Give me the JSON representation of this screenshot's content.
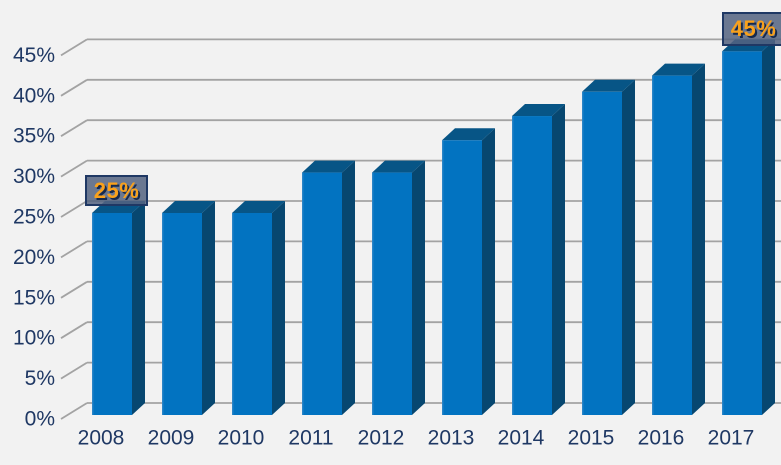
{
  "chart_data": {
    "type": "bar",
    "style": "3d-column",
    "title": "",
    "xlabel": "",
    "ylabel": "",
    "categories": [
      "2008",
      "2009",
      "2010",
      "2011",
      "2012",
      "2013",
      "2014",
      "2015",
      "2016",
      "2017"
    ],
    "values": [
      25,
      25,
      25,
      30,
      30,
      34,
      37,
      40,
      42,
      45
    ],
    "unit": "%",
    "ylim": [
      0,
      45
    ],
    "y_tick_step": 5,
    "y_tick_labels": [
      "0%",
      "5%",
      "10%",
      "15%",
      "20%",
      "25%",
      "30%",
      "35%",
      "40%",
      "45%"
    ],
    "grid": true,
    "legend": false,
    "data_labels": [
      {
        "category": "2008",
        "text": "25%"
      },
      {
        "category": "2017",
        "text": "45%"
      }
    ],
    "colors": {
      "background": "#F2F2F2",
      "gridline": "#A3A3A3",
      "axis_text": "#1F3864",
      "bar_front": "#0273C1",
      "bar_top": "#075586",
      "bar_side": "#074770",
      "bar_edge_highlight": "#4D94CC",
      "label_box_fill": "rgba(84,99,128,0.85)",
      "label_box_border": "#1F3864",
      "label_text": "#F9A11B"
    }
  }
}
